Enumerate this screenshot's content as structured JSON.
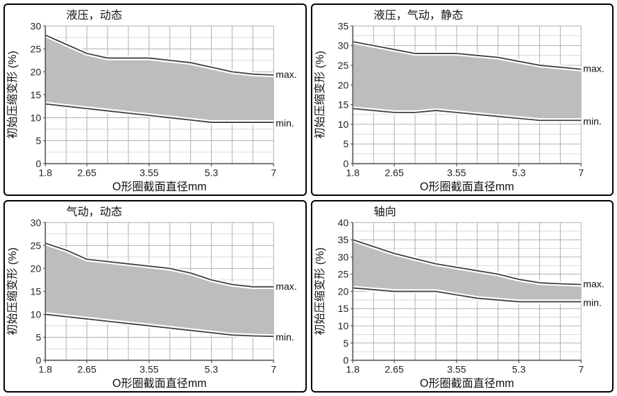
{
  "layout": {
    "total_width": 889,
    "total_height": 570,
    "rows": 2,
    "cols": 2,
    "gap": 6,
    "panel_border_color": "#000000",
    "panel_border_width": 2.5,
    "panel_border_radius": 6,
    "background": "#ffffff"
  },
  "shared": {
    "type": "area",
    "xlabel": "O形圈截面直径mm",
    "ylabel": "初始压缩变形 (%)",
    "x_values": [
      1.8,
      2.65,
      3.55,
      5.3,
      7
    ],
    "x_tick_labels": [
      "1.8",
      "2.65",
      "3.55",
      "5.3",
      "7"
    ],
    "label_fontsize": 16,
    "tick_fontsize": 14,
    "axis_color": "#555555",
    "grid_color": "#b0b0b0",
    "grid_minor_color": "#cfcfcf",
    "grid_width": 1,
    "line_color_upper": "#404040",
    "line_color_lower": "#404040",
    "line_width": 1.8,
    "fill_color": "#bdbdbd",
    "fill_opacity": 1,
    "white_gap_width": 2.2,
    "max_label": "max.",
    "min_label": "min.",
    "annotation_fontsize": 14,
    "plot_bg": "#ffffff"
  },
  "panels": [
    {
      "id": "hydraulic_dynamic",
      "title": "液压，动态",
      "ylim": [
        0,
        30
      ],
      "ytick_step": 5,
      "n_minor_y": 1,
      "upper": [
        28,
        26,
        24,
        23,
        23,
        23,
        22.5,
        22,
        21,
        20,
        19.5,
        19.3
      ],
      "lower": [
        13,
        12.5,
        12,
        11.5,
        11,
        10.5,
        10,
        9.5,
        9,
        9,
        9,
        9
      ]
    },
    {
      "id": "hydraulic_pneumatic_static",
      "title": "液压，气动，静态",
      "ylim": [
        0,
        35
      ],
      "ytick_step": 5,
      "n_minor_y": 1,
      "upper": [
        31,
        30,
        29,
        28,
        28,
        28,
        27.5,
        27,
        26,
        25,
        24.5,
        24
      ],
      "lower": [
        14,
        13.5,
        13,
        13,
        13.5,
        13,
        12.5,
        12,
        11.5,
        11,
        11,
        11
      ]
    },
    {
      "id": "pneumatic_dynamic",
      "title": "气动，动态",
      "ylim": [
        0,
        30
      ],
      "ytick_step": 5,
      "n_minor_y": 1,
      "upper": [
        25.5,
        24,
        22,
        21.5,
        21,
        20.5,
        20,
        19,
        17.5,
        16.5,
        16,
        16
      ],
      "lower": [
        10,
        9.5,
        9,
        8.5,
        8,
        7.5,
        7,
        6.5,
        6,
        5.5,
        5.3,
        5.2
      ]
    },
    {
      "id": "axial",
      "title": "轴向",
      "ylim": [
        0,
        40
      ],
      "ytick_step": 5,
      "n_minor_y": 1,
      "upper": [
        35,
        33,
        31,
        29.5,
        28,
        27,
        26,
        25,
        23.5,
        22.5,
        22.2,
        22
      ],
      "lower": [
        21,
        20.5,
        20,
        20,
        20,
        19,
        18,
        17.5,
        17,
        17,
        17,
        17
      ]
    }
  ]
}
